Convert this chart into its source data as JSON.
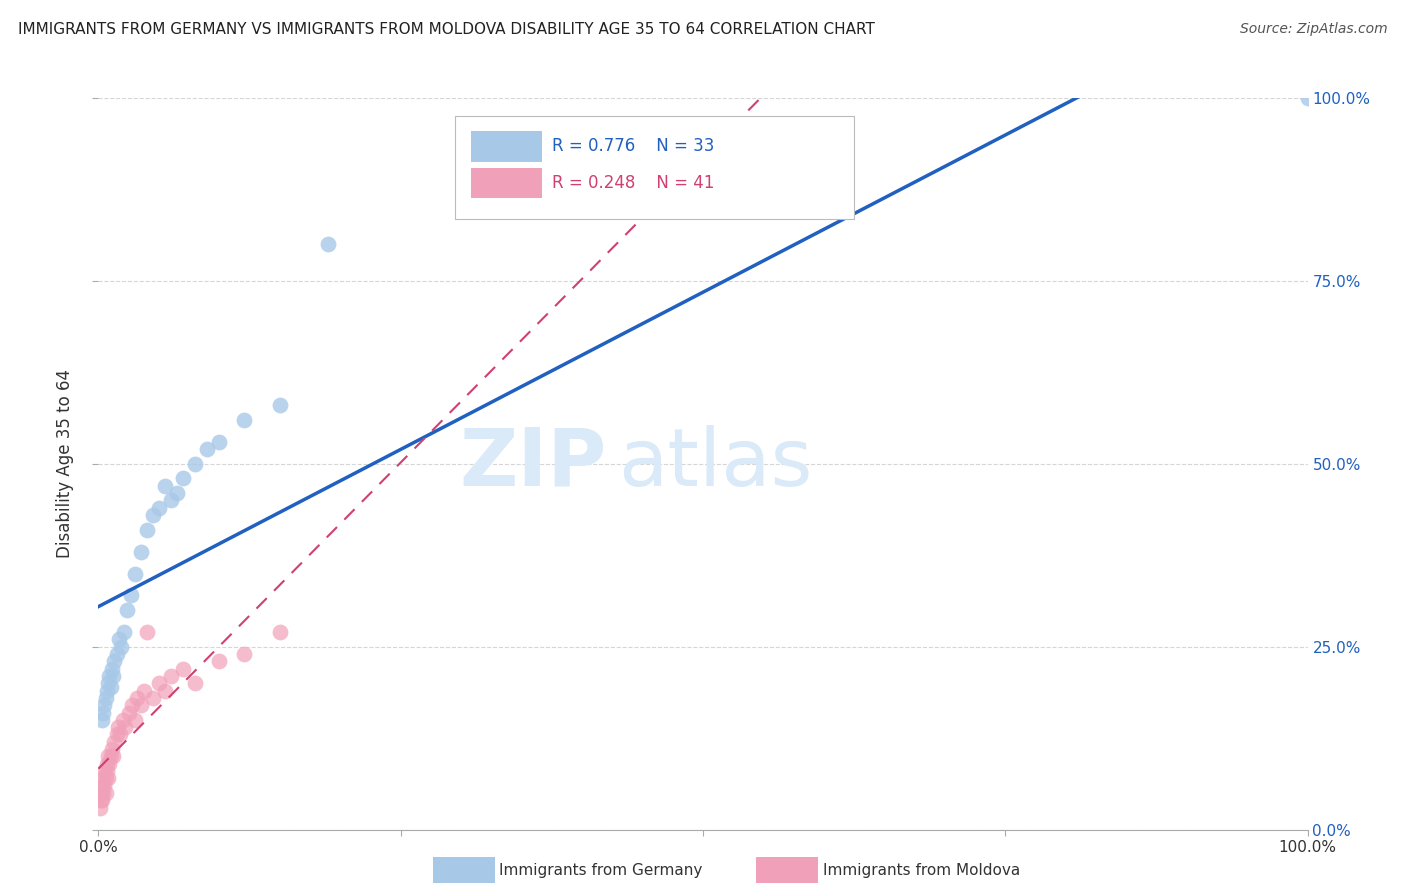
{
  "title": "IMMIGRANTS FROM GERMANY VS IMMIGRANTS FROM MOLDOVA DISABILITY AGE 35 TO 64 CORRELATION CHART",
  "source": "Source: ZipAtlas.com",
  "ylabel": "Disability Age 35 to 64",
  "xlim": [
    0,
    1.0
  ],
  "ylim": [
    0,
    1.0
  ],
  "xticks": [
    0.0,
    0.25,
    0.5,
    0.75,
    1.0
  ],
  "yticks": [
    0.0,
    0.25,
    0.5,
    0.75,
    1.0
  ],
  "xticklabels": [
    "0.0%",
    "",
    "",
    "",
    "100.0%"
  ],
  "yticklabels_right": [
    "0.0%",
    "25.0%",
    "50.0%",
    "75.0%",
    "100.0%"
  ],
  "germany_R": 0.776,
  "germany_N": 33,
  "moldova_R": 0.248,
  "moldova_N": 41,
  "germany_color": "#a8c8e8",
  "germany_line_color": "#2060c0",
  "moldova_color": "#f0a0b8",
  "moldova_line_color": "#d04070",
  "background_color": "#ffffff",
  "watermark_zip": "ZIP",
  "watermark_atlas": "atlas",
  "watermark_color": "#daeaf8",
  "grid_color": "#cccccc",
  "germany_x": [
    0.003,
    0.004,
    0.005,
    0.006,
    0.007,
    0.008,
    0.009,
    0.01,
    0.011,
    0.012,
    0.013,
    0.015,
    0.017,
    0.019,
    0.021,
    0.024,
    0.027,
    0.03,
    0.035,
    0.04,
    0.045,
    0.05,
    0.055,
    0.06,
    0.065,
    0.07,
    0.08,
    0.09,
    0.1,
    0.12,
    0.15,
    0.19,
    1.0
  ],
  "germany_y": [
    0.15,
    0.16,
    0.17,
    0.18,
    0.19,
    0.2,
    0.21,
    0.195,
    0.22,
    0.21,
    0.23,
    0.24,
    0.26,
    0.25,
    0.27,
    0.3,
    0.32,
    0.35,
    0.38,
    0.41,
    0.43,
    0.44,
    0.47,
    0.45,
    0.46,
    0.48,
    0.5,
    0.52,
    0.53,
    0.56,
    0.58,
    0.8,
    1.0
  ],
  "moldova_x": [
    0.001,
    0.002,
    0.002,
    0.003,
    0.003,
    0.004,
    0.004,
    0.005,
    0.005,
    0.006,
    0.006,
    0.007,
    0.007,
    0.008,
    0.008,
    0.009,
    0.01,
    0.011,
    0.012,
    0.013,
    0.015,
    0.016,
    0.018,
    0.02,
    0.022,
    0.025,
    0.028,
    0.03,
    0.032,
    0.035,
    0.038,
    0.04,
    0.045,
    0.05,
    0.055,
    0.06,
    0.07,
    0.08,
    0.1,
    0.12,
    0.15
  ],
  "moldova_y": [
    0.03,
    0.04,
    0.05,
    0.04,
    0.06,
    0.05,
    0.07,
    0.06,
    0.08,
    0.07,
    0.05,
    0.08,
    0.09,
    0.07,
    0.1,
    0.09,
    0.1,
    0.11,
    0.1,
    0.12,
    0.13,
    0.14,
    0.13,
    0.15,
    0.14,
    0.16,
    0.17,
    0.15,
    0.18,
    0.17,
    0.19,
    0.27,
    0.18,
    0.2,
    0.19,
    0.21,
    0.22,
    0.2,
    0.23,
    0.24,
    0.27
  ]
}
